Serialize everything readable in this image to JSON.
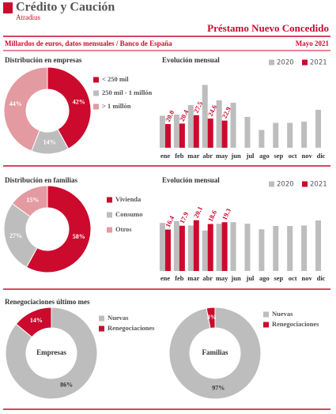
{
  "header": {
    "brand": "Crédito y Caución",
    "brand_sub": "Atradius",
    "title": "Préstamo Nuevo Concedido",
    "subtitle": "Millardos de euros, datos mensuales / Banco de España",
    "date": "Mayo 2021",
    "section3_title": "Renegociaciones último mes"
  },
  "chart_data": [
    {
      "type": "donut",
      "title": "Distribución en empresas",
      "categories": [
        "< 250 mil",
        "250 mil - 1 millón",
        "> 1 millón"
      ],
      "values": [
        42,
        14,
        44
      ],
      "value_labels": [
        "42%",
        "14%",
        "44%"
      ],
      "colors": [
        "#cc0a2d",
        "#bdbdbd",
        "#e39aa0"
      ]
    },
    {
      "type": "bar",
      "title": "Evolución mensual",
      "categories": [
        "ene",
        "feb",
        "mar",
        "abr",
        "may",
        "jun",
        "jul",
        "ago",
        "sep",
        "oct",
        "nov",
        "dic"
      ],
      "ylim": [
        0,
        60
      ],
      "series": [
        {
          "name": "2020",
          "color": "#bdbdbd",
          "values": [
            27,
            28,
            36,
            53,
            40,
            38,
            26,
            15,
            21,
            21,
            22,
            32
          ]
        },
        {
          "name": "2021",
          "color": "#cc0a2d",
          "values": [
            20,
            20.4,
            27.5,
            24.6,
            22.9,
            null,
            null,
            null,
            null,
            null,
            null,
            null
          ],
          "value_labels": [
            "20.0",
            "20.4",
            "27.5",
            "24.6",
            "22.9",
            null,
            null,
            null,
            null,
            null,
            null,
            null
          ]
        }
      ]
    },
    {
      "type": "donut",
      "title": "Distribución en familias",
      "categories": [
        "Vivienda",
        "Consumo",
        "Otros"
      ],
      "values": [
        58,
        27,
        15
      ],
      "value_labels": [
        "58%",
        "27%",
        "15%"
      ],
      "colors": [
        "#cc0a2d",
        "#bdbdbd",
        "#e39aa0"
      ]
    },
    {
      "type": "bar",
      "title": "Evolución mensual",
      "categories": [
        "ene",
        "feb",
        "mar",
        "abr",
        "may",
        "jun",
        "jul",
        "ago",
        "sep",
        "oct",
        "nov",
        "dic"
      ],
      "ylim": [
        0,
        30
      ],
      "series": [
        {
          "name": "2020",
          "color": "#bdbdbd",
          "values": [
            19,
            19.7,
            18,
            16,
            18.7,
            19.3,
            18.7,
            16.5,
            17.8,
            17.8,
            18,
            20
          ]
        },
        {
          "name": "2021",
          "color": "#cc0a2d",
          "values": [
            16.4,
            17.9,
            20.1,
            18.6,
            19.3,
            null,
            null,
            null,
            null,
            null,
            null,
            null
          ]
        }
      ]
    },
    {
      "type": "donut",
      "center_label": "Empresas",
      "categories": [
        "Nuevas",
        "Renegociaciones"
      ],
      "values": [
        86,
        14
      ],
      "value_labels": [
        "86%",
        "14%"
      ],
      "colors": [
        "#bdbdbd",
        "#cc0a2d"
      ]
    },
    {
      "type": "donut",
      "center_label": "Familias",
      "categories": [
        "Nuevas",
        "Renegociaciones"
      ],
      "values": [
        97,
        3
      ],
      "value_labels": [
        "97%",
        "3%"
      ],
      "colors": [
        "#bdbdbd",
        "#cc0a2d"
      ]
    }
  ]
}
